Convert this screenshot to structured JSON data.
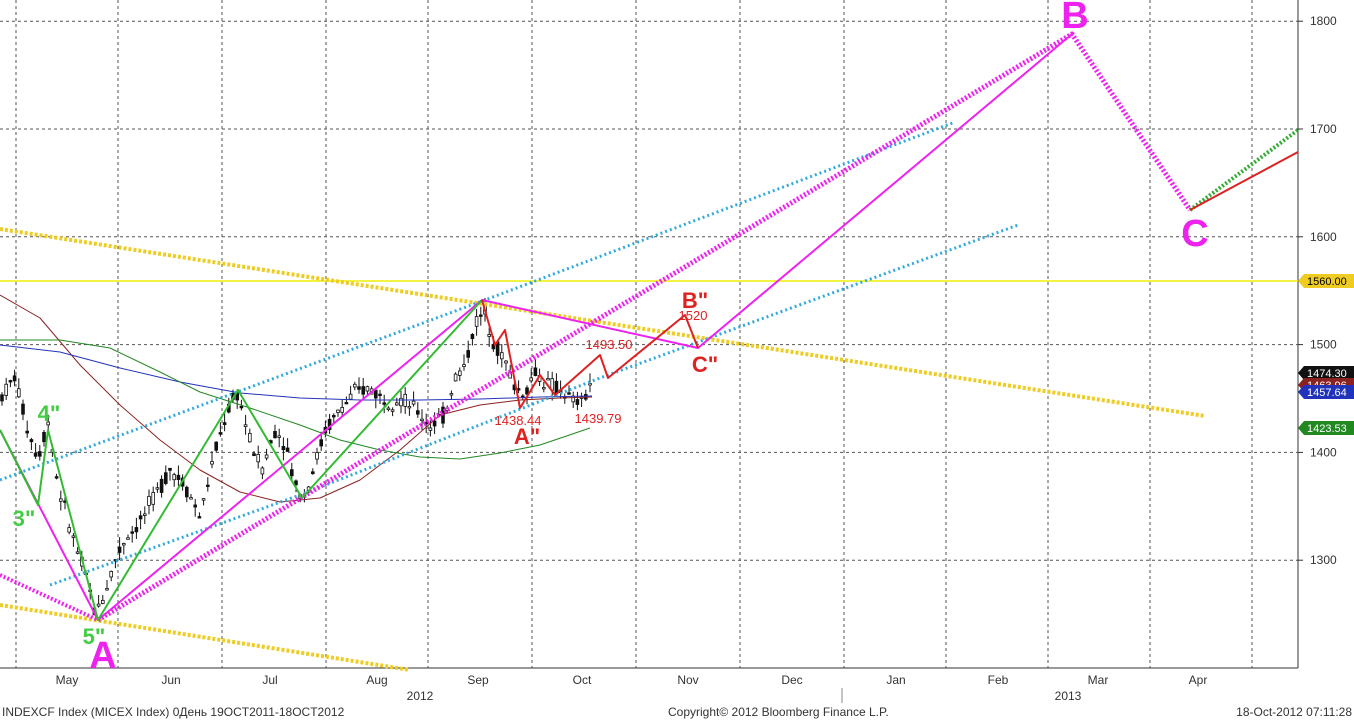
{
  "footer": {
    "left": "INDEXCF Index (MICEX Index) 0День 19OCT2011-18OCT2012",
    "center": "Copyright© 2012 Bloomberg Finance L.P.",
    "right": "18-Oct-2012 07:11:28"
  },
  "colors": {
    "background": "#ffffff",
    "grid": "#555555",
    "candle": "#111111",
    "magenta": "#ee22ee",
    "green_wave": "#44cc44",
    "red": "#dd2222",
    "cyan": "#33aadd",
    "yellow": "#eecc22",
    "ma_blue": "#2233bb",
    "ma_brown": "#8b2222",
    "ma_green": "#228822"
  },
  "chart_data": {
    "type": "candlestick",
    "ylim": [
      1200,
      1800
    ],
    "y_ticks": [
      1300,
      1400,
      1500,
      1600,
      1700,
      1800
    ],
    "x_month_labels": [
      "May",
      "Jun",
      "Jul",
      "Aug",
      "Sep",
      "Oct",
      "Nov",
      "Dec",
      "Jan",
      "Feb",
      "Mar",
      "Apr"
    ],
    "x_year_labels": [
      "2012",
      "2013"
    ],
    "price_tags": [
      {
        "label": "1560.00",
        "value": 1560.0,
        "color": "#eecc22"
      },
      {
        "label": "1474.30",
        "value": 1474.3,
        "color": "#111111"
      },
      {
        "label": "1463.96",
        "value": 1463.96,
        "color": "#8b2222"
      },
      {
        "label": "1457.64",
        "value": 1457.64,
        "color": "#2233bb"
      },
      {
        "label": "1423.53",
        "value": 1423.53,
        "color": "#228822"
      }
    ],
    "horizontal_level": 1560,
    "candle_path": [
      [
        0,
        1450
      ],
      [
        15,
        1470
      ],
      [
        28,
        1420
      ],
      [
        38,
        1395
      ],
      [
        48,
        1430
      ],
      [
        58,
        1370
      ],
      [
        70,
        1330
      ],
      [
        80,
        1300
      ],
      [
        88,
        1280
      ],
      [
        95,
        1250
      ],
      [
        105,
        1270
      ],
      [
        115,
        1300
      ],
      [
        125,
        1320
      ],
      [
        140,
        1335
      ],
      [
        155,
        1360
      ],
      [
        170,
        1385
      ],
      [
        185,
        1370
      ],
      [
        200,
        1340
      ],
      [
        215,
        1400
      ],
      [
        228,
        1440
      ],
      [
        238,
        1455
      ],
      [
        250,
        1410
      ],
      [
        262,
        1385
      ],
      [
        275,
        1420
      ],
      [
        285,
        1410
      ],
      [
        295,
        1370
      ],
      [
        305,
        1360
      ],
      [
        315,
        1390
      ],
      [
        325,
        1420
      ],
      [
        340,
        1440
      ],
      [
        355,
        1455
      ],
      [
        370,
        1460
      ],
      [
        385,
        1448
      ],
      [
        400,
        1450
      ],
      [
        415,
        1440
      ],
      [
        430,
        1425
      ],
      [
        445,
        1435
      ],
      [
        455,
        1470
      ],
      [
        465,
        1480
      ],
      [
        475,
        1520
      ],
      [
        485,
        1530
      ],
      [
        495,
        1500
      ],
      [
        505,
        1485
      ],
      [
        515,
        1460
      ],
      [
        525,
        1455
      ],
      [
        535,
        1475
      ],
      [
        545,
        1465
      ],
      [
        555,
        1460
      ],
      [
        565,
        1455
      ],
      [
        575,
        1445
      ],
      [
        585,
        1450
      ],
      [
        592,
        1470
      ]
    ],
    "annotations": [
      {
        "text": "A",
        "color": "#ee22ee",
        "size": "large"
      },
      {
        "text": "B",
        "color": "#ee22ee",
        "size": "large"
      },
      {
        "text": "C",
        "color": "#ee22ee",
        "size": "large"
      },
      {
        "text": "3\"",
        "color": "#44cc44",
        "size": "medium"
      },
      {
        "text": "4\"",
        "color": "#44cc44",
        "size": "medium"
      },
      {
        "text": "5\"",
        "color": "#44cc44",
        "size": "medium"
      },
      {
        "text": "A\"",
        "color": "#dd2222",
        "size": "medium"
      },
      {
        "text": "B\"",
        "color": "#dd2222",
        "size": "medium"
      },
      {
        "text": "C\"",
        "color": "#dd2222",
        "size": "medium"
      },
      {
        "text": "1520",
        "color": "#dd2222",
        "size": "small"
      },
      {
        "text": "1493.50",
        "color": "#dd2222",
        "size": "small"
      },
      {
        "text": "1438.44",
        "color": "#dd2222",
        "size": "small"
      },
      {
        "text": "1439.79",
        "color": "#dd2222",
        "size": "small"
      }
    ]
  }
}
